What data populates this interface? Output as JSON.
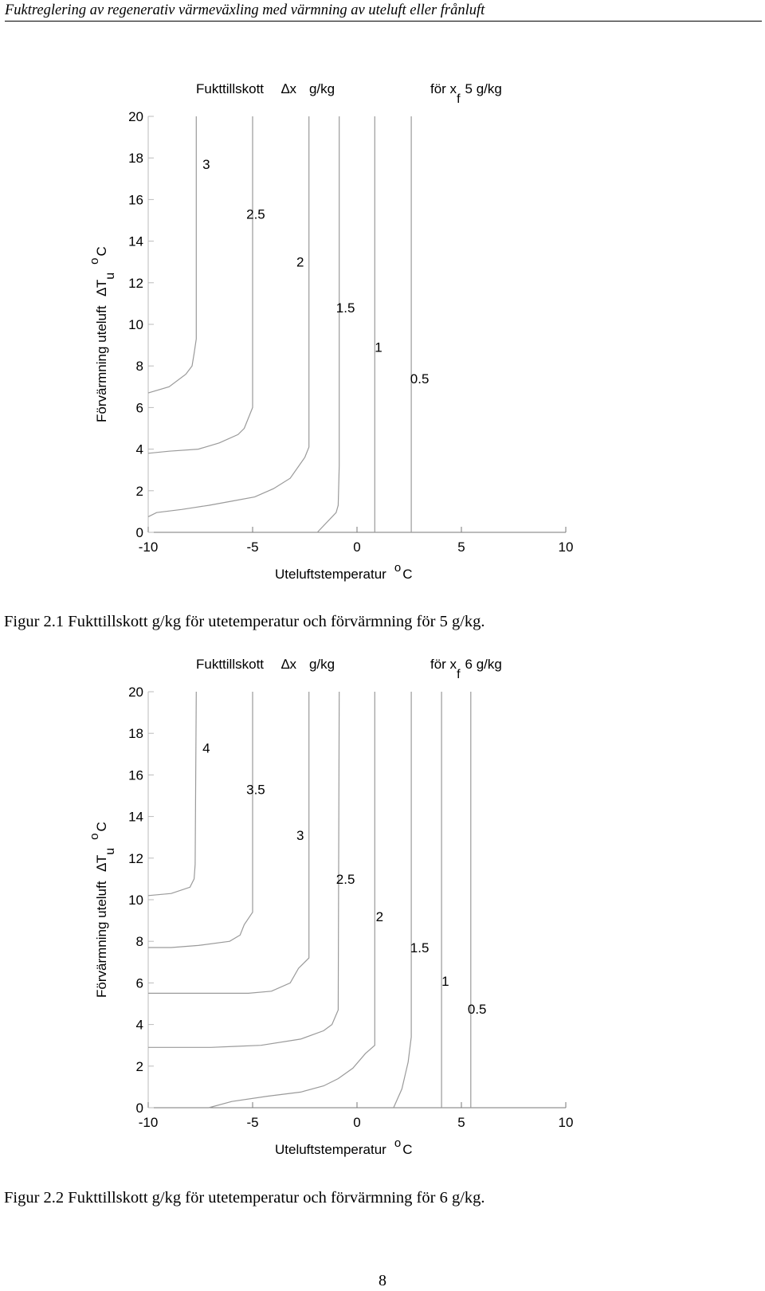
{
  "header": {
    "running_title": "Fuktreglering av regenerativ värmeväxling med värmning av uteluft eller frånluft"
  },
  "chart_data": [
    {
      "type": "line",
      "title": {
        "left": "Fukttillskott",
        "delta": "∆",
        "var": "x",
        "unit": "g/kg",
        "right_pre": "för x",
        "right_sub": "f",
        "right_post": "5 g/kg"
      },
      "xlabel": {
        "text": "Uteluftstemperatur",
        "sup": "o",
        "unit": "C"
      },
      "ylabel": {
        "text": "Förvärmning uteluft",
        "delta": "∆",
        "var": "T",
        "sub": "u",
        "sup": "o",
        "unit": "C"
      },
      "xlim": [
        -10,
        10
      ],
      "ylim": [
        0,
        20
      ],
      "xticks": [
        -10,
        -5,
        0,
        5,
        10
      ],
      "xtick_labels": [
        "-10",
        "-5",
        "0",
        "5",
        "10"
      ],
      "yticks": [
        0,
        2,
        4,
        6,
        8,
        10,
        12,
        14,
        16,
        18,
        20
      ],
      "ytick_labels": [
        "0",
        "2",
        "4",
        "6",
        "8",
        "10",
        "12",
        "14",
        "16",
        "18",
        "20"
      ],
      "grid": false,
      "line_color": "#9a9a9a",
      "series": [
        {
          "label": "3",
          "label_pos": [
            -7.4,
            17.7
          ],
          "points": [
            [
              -10,
              6.7
            ],
            [
              -9.0,
              7.0
            ],
            [
              -8.2,
              7.6
            ],
            [
              -7.9,
              8.0
            ],
            [
              -7.8,
              8.6
            ],
            [
              -7.7,
              9.3
            ],
            [
              -7.7,
              20
            ]
          ]
        },
        {
          "label": "2.5",
          "label_pos": [
            -5.3,
            15.3
          ],
          "points": [
            [
              -10,
              3.8
            ],
            [
              -9.0,
              3.9
            ],
            [
              -7.6,
              4.0
            ],
            [
              -6.6,
              4.3
            ],
            [
              -5.7,
              4.7
            ],
            [
              -5.4,
              5.0
            ],
            [
              -5.0,
              6.0
            ],
            [
              -5.0,
              20
            ]
          ]
        },
        {
          "label": "2",
          "label_pos": [
            -2.9,
            13.0
          ],
          "points": [
            [
              -10,
              0.75
            ],
            [
              -9.6,
              0.95
            ],
            [
              -8.4,
              1.1
            ],
            [
              -7.1,
              1.3
            ],
            [
              -6.0,
              1.5
            ],
            [
              -4.9,
              1.7
            ],
            [
              -4.0,
              2.1
            ],
            [
              -3.2,
              2.6
            ],
            [
              -2.5,
              3.6
            ],
            [
              -2.3,
              4.1
            ],
            [
              -2.3,
              20
            ]
          ]
        },
        {
          "label": "1.5",
          "label_pos": [
            -1.0,
            10.8
          ],
          "points": [
            [
              -1.9,
              0
            ],
            [
              -1.0,
              0.95
            ],
            [
              -0.9,
              1.3
            ],
            [
              -0.85,
              3.2
            ],
            [
              -0.85,
              20
            ]
          ]
        },
        {
          "label": "1",
          "label_pos": [
            0.85,
            8.9
          ],
          "points": [
            [
              0.85,
              0
            ],
            [
              0.85,
              20
            ]
          ]
        },
        {
          "label": "0.5",
          "label_pos": [
            2.55,
            7.4
          ],
          "points": [
            [
              2.6,
              0
            ],
            [
              2.6,
              20
            ]
          ]
        }
      ]
    },
    {
      "type": "line",
      "title": {
        "left": "Fukttillskott",
        "delta": "∆",
        "var": "x",
        "unit": "g/kg",
        "right_pre": "för x",
        "right_sub": "f",
        "right_post": "6 g/kg"
      },
      "xlabel": {
        "text": "Uteluftstemperatur",
        "sup": "o",
        "unit": "C"
      },
      "ylabel": {
        "text": "Förvärmning uteluft",
        "delta": "∆",
        "var": "T",
        "sub": "u",
        "sup": "o",
        "unit": "C"
      },
      "xlim": [
        -10,
        10
      ],
      "ylim": [
        0,
        20
      ],
      "xticks": [
        -10,
        -5,
        0,
        5,
        10
      ],
      "xtick_labels": [
        "-10",
        "-5",
        "0",
        "5",
        "10"
      ],
      "yticks": [
        0,
        2,
        4,
        6,
        8,
        10,
        12,
        14,
        16,
        18,
        20
      ],
      "ytick_labels": [
        "0",
        "2",
        "4",
        "6",
        "8",
        "10",
        "12",
        "14",
        "16",
        "18",
        "20"
      ],
      "grid": false,
      "line_color": "#9a9a9a",
      "series": [
        {
          "label": "4",
          "label_pos": [
            -7.4,
            17.3
          ],
          "points": [
            [
              -10,
              10.2
            ],
            [
              -8.9,
              10.3
            ],
            [
              -8.0,
              10.6
            ],
            [
              -7.8,
              11.0
            ],
            [
              -7.75,
              11.7
            ],
            [
              -7.7,
              20
            ]
          ]
        },
        {
          "label": "3.5",
          "label_pos": [
            -5.3,
            15.3
          ],
          "points": [
            [
              -10,
              7.7
            ],
            [
              -8.9,
              7.7
            ],
            [
              -7.6,
              7.8
            ],
            [
              -6.1,
              8.0
            ],
            [
              -5.6,
              8.3
            ],
            [
              -5.4,
              8.8
            ],
            [
              -5.0,
              9.4
            ],
            [
              -5.0,
              20
            ]
          ]
        },
        {
          "label": "3",
          "label_pos": [
            -2.9,
            13.1
          ],
          "points": [
            [
              -10,
              5.5
            ],
            [
              -8.2,
              5.5
            ],
            [
              -6.8,
              5.5
            ],
            [
              -5.2,
              5.5
            ],
            [
              -4.1,
              5.6
            ],
            [
              -3.2,
              6.0
            ],
            [
              -2.8,
              6.7
            ],
            [
              -2.3,
              7.2
            ],
            [
              -2.3,
              20
            ]
          ]
        },
        {
          "label": "2.5",
          "label_pos": [
            -1.0,
            11.0
          ],
          "points": [
            [
              -10,
              2.9
            ],
            [
              -8.8,
              2.9
            ],
            [
              -7.0,
              2.9
            ],
            [
              -5.8,
              2.95
            ],
            [
              -4.6,
              3.0
            ],
            [
              -2.7,
              3.3
            ],
            [
              -1.6,
              3.7
            ],
            [
              -1.2,
              4.0
            ],
            [
              -0.9,
              4.7
            ],
            [
              -0.85,
              20
            ]
          ]
        },
        {
          "label": "2",
          "label_pos": [
            0.9,
            9.2
          ],
          "points": [
            [
              -7.1,
              0
            ],
            [
              -6.0,
              0.3
            ],
            [
              -4.3,
              0.55
            ],
            [
              -2.7,
              0.75
            ],
            [
              -1.6,
              1.05
            ],
            [
              -0.9,
              1.4
            ],
            [
              -0.2,
              1.9
            ],
            [
              0.4,
              2.6
            ],
            [
              0.85,
              3.0
            ],
            [
              0.85,
              20
            ]
          ]
        },
        {
          "label": "1.5",
          "label_pos": [
            2.55,
            7.7
          ],
          "points": [
            [
              1.75,
              0
            ],
            [
              2.15,
              0.9
            ],
            [
              2.45,
              2.2
            ],
            [
              2.6,
              3.4
            ],
            [
              2.6,
              20
            ]
          ]
        },
        {
          "label": "1",
          "label_pos": [
            4.05,
            6.1
          ],
          "points": [
            [
              4.05,
              0
            ],
            [
              4.05,
              20
            ]
          ]
        },
        {
          "label": "0.5",
          "label_pos": [
            5.3,
            4.75
          ],
          "points": [
            [
              5.45,
              0
            ],
            [
              5.45,
              20
            ]
          ]
        }
      ]
    }
  ],
  "captions": [
    "Figur 2.1 Fukttillskott g/kg för utetemperatur och förvärmning för 5 g/kg.",
    "Figur 2.2 Fukttillskott g/kg för utetemperatur och förvärmning för 6 g/kg."
  ],
  "page_number": "8"
}
